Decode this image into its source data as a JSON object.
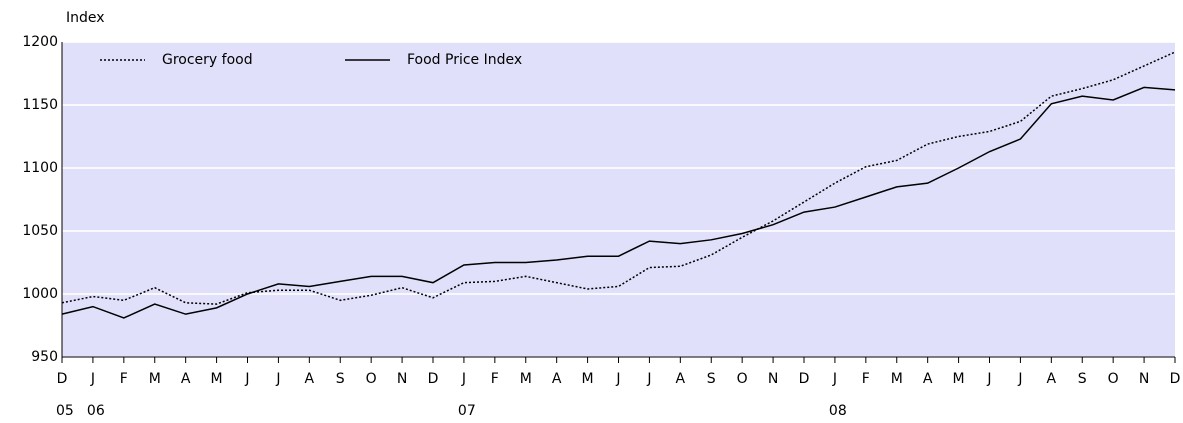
{
  "chart_data": {
    "type": "line",
    "y_axis_label": "Index",
    "categories": [
      "D",
      "J",
      "F",
      "M",
      "A",
      "M",
      "J",
      "J",
      "A",
      "S",
      "O",
      "N",
      "D",
      "J",
      "F",
      "M",
      "A",
      "M",
      "J",
      "J",
      "A",
      "S",
      "O",
      "N",
      "D",
      "J",
      "F",
      "M",
      "A",
      "M",
      "J",
      "J",
      "A",
      "S",
      "O",
      "N",
      "D"
    ],
    "year_labels": [
      "05",
      "06",
      null,
      null,
      null,
      null,
      null,
      null,
      null,
      null,
      null,
      null,
      null,
      "07",
      null,
      null,
      null,
      null,
      null,
      null,
      null,
      null,
      null,
      null,
      null,
      "08",
      null,
      null,
      null,
      null,
      null,
      null,
      null,
      null,
      null,
      null,
      null
    ],
    "series": [
      {
        "name": "Grocery food",
        "color": "#000000",
        "dash": "dotted",
        "values": [
          993,
          998,
          995,
          1005,
          993,
          992,
          1001,
          1003,
          1003,
          995,
          999,
          1005,
          997,
          1009,
          1010,
          1014,
          1009,
          1004,
          1006,
          1021,
          1022,
          1031,
          1045,
          1058,
          1073,
          1088,
          1101,
          1106,
          1119,
          1125,
          1129,
          1137,
          1157,
          1163,
          1170,
          1181,
          1192
        ]
      },
      {
        "name": "Food Price Index",
        "color": "#000000",
        "dash": "solid",
        "values": [
          984,
          990,
          981,
          992,
          984,
          989,
          1000,
          1008,
          1006,
          1010,
          1014,
          1014,
          1009,
          1023,
          1025,
          1025,
          1027,
          1030,
          1030,
          1042,
          1040,
          1043,
          1048,
          1055,
          1065,
          1069,
          1077,
          1085,
          1088,
          1100,
          1113,
          1123,
          1151,
          1157,
          1154,
          1164,
          1162
        ]
      }
    ],
    "ylim": [
      950,
      1200
    ],
    "yticks": [
      950,
      1000,
      1050,
      1100,
      1150,
      1200
    ],
    "grid": true,
    "background": "#e0e0fa",
    "legend": "upper left"
  }
}
